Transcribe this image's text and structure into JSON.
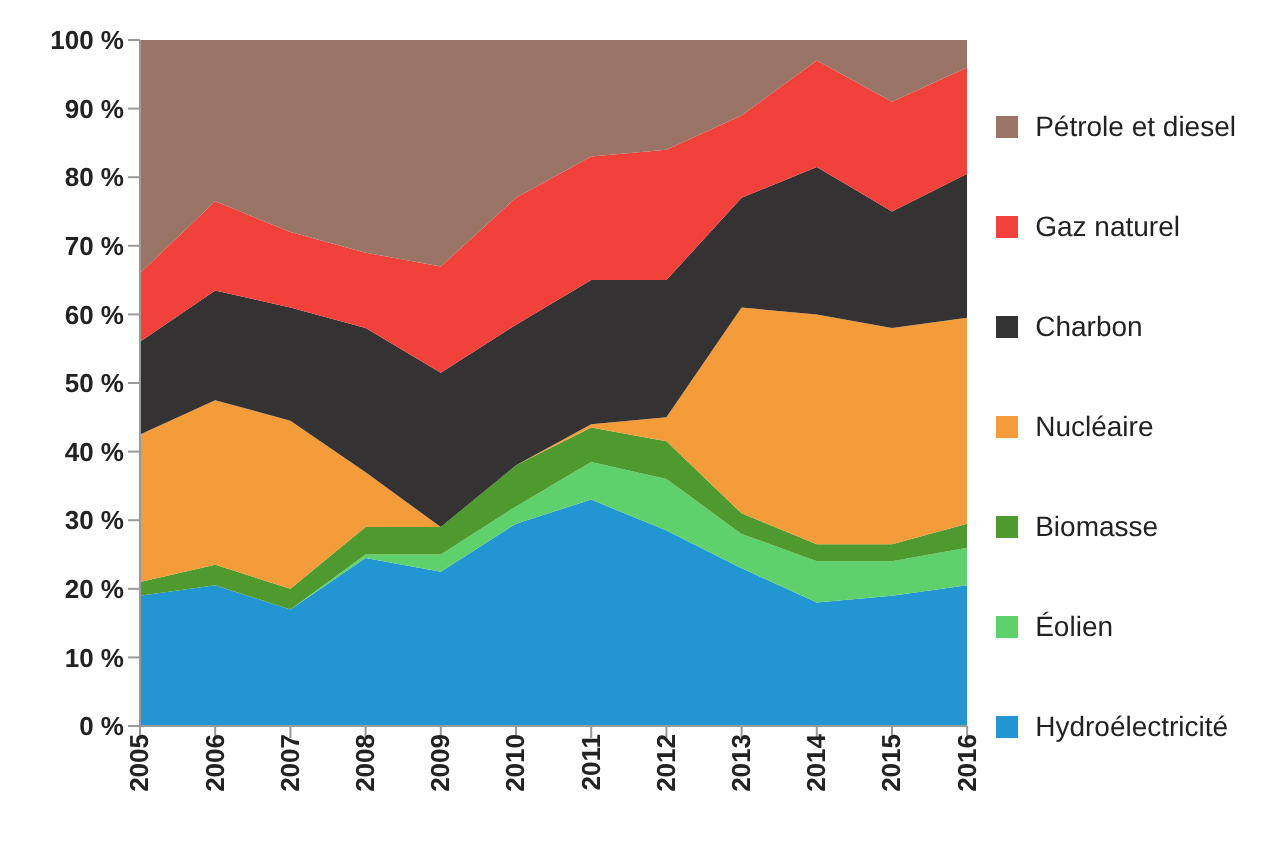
{
  "chart_data": {
    "type": "area",
    "stacked": true,
    "x": [
      2005,
      2006,
      2007,
      2008,
      2009,
      2010,
      2011,
      2012,
      2013,
      2014,
      2015,
      2016
    ],
    "xlim": [
      2005,
      2016
    ],
    "xticks": [
      2005,
      2006,
      2007,
      2008,
      2009,
      2010,
      2011,
      2012,
      2013,
      2014,
      2015,
      2016
    ],
    "ylim": [
      0,
      100
    ],
    "yticks": [
      {
        "value": 0,
        "label": "0 %"
      },
      {
        "value": 10,
        "label": "10 %"
      },
      {
        "value": 20,
        "label": "20 %"
      },
      {
        "value": 30,
        "label": "30 %"
      },
      {
        "value": 40,
        "label": "40 %"
      },
      {
        "value": 50,
        "label": "50 %"
      },
      {
        "value": 60,
        "label": "60 %"
      },
      {
        "value": 70,
        "label": "70 %"
      },
      {
        "value": 80,
        "label": "80 %"
      },
      {
        "value": 90,
        "label": "90 %"
      },
      {
        "value": 100,
        "label": "100 %"
      }
    ],
    "grid": false,
    "legend": "right",
    "series": [
      {
        "name": "Hydroélectricité",
        "color": "#2196d3",
        "values": [
          19,
          20.5,
          17,
          24.5,
          22.5,
          29.5,
          33,
          28.5,
          23,
          18,
          19,
          20.5
        ]
      },
      {
        "name": "Éolien",
        "color": "#5fd16c",
        "values": [
          0,
          0,
          0,
          0.5,
          2.5,
          2.5,
          5.5,
          7.5,
          5,
          6,
          5,
          5.5
        ]
      },
      {
        "name": "Biomasse",
        "color": "#4f9a2e",
        "values": [
          2,
          3,
          3,
          4,
          4,
          6,
          5,
          5.5,
          3,
          2.5,
          2.5,
          3.5
        ]
      },
      {
        "name": "Nucléaire",
        "color": "#f49b3a",
        "values": [
          21.5,
          24,
          24.5,
          8,
          0,
          0,
          0.5,
          3.5,
          30,
          33.5,
          31.5,
          30
        ]
      },
      {
        "name": "Charbon",
        "color": "#343233",
        "values": [
          13.5,
          16,
          16.5,
          21,
          22.5,
          20.5,
          21,
          20,
          16,
          21.5,
          17,
          21
        ]
      },
      {
        "name": "Gaz naturel",
        "color": "#f2403a",
        "values": [
          10,
          13,
          11,
          11,
          15.5,
          18.5,
          18,
          19,
          12,
          15.5,
          16,
          15.5
        ]
      },
      {
        "name": "Pétrole et diesel",
        "color": "#9a7565",
        "values": [
          34,
          23.5,
          28,
          31,
          33,
          23,
          17,
          16,
          11,
          3,
          9,
          4
        ]
      }
    ]
  }
}
